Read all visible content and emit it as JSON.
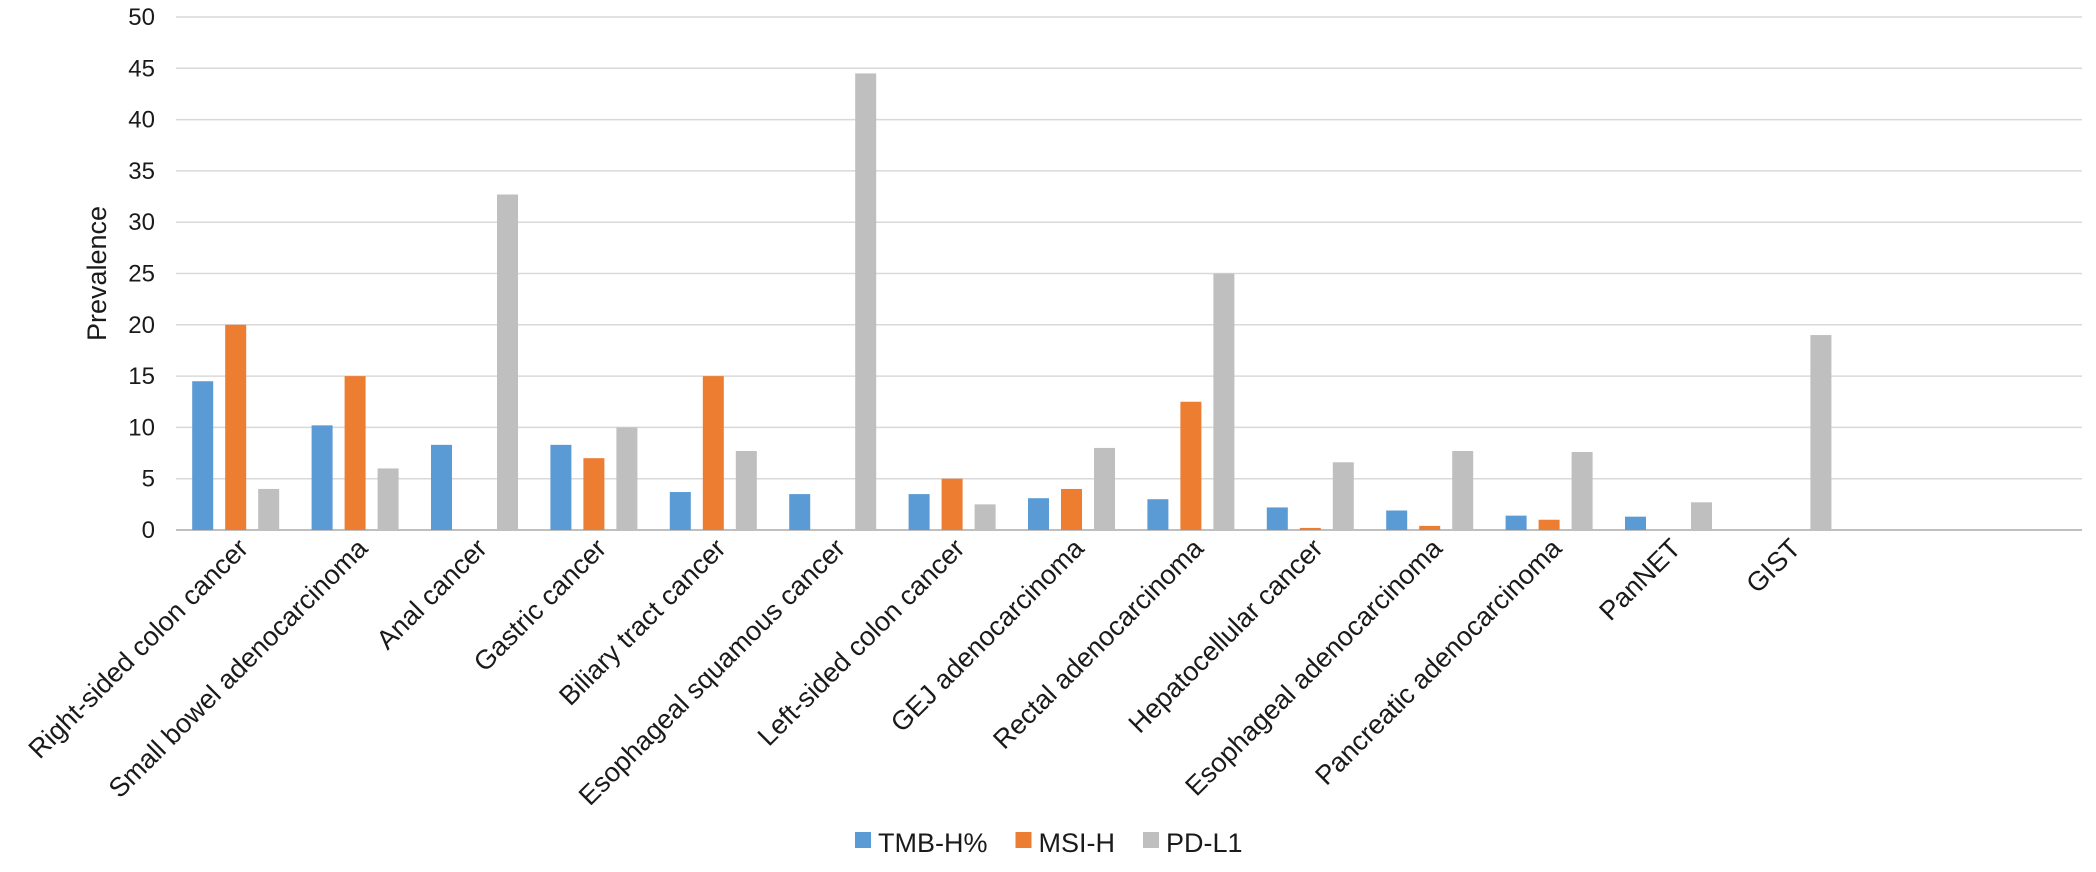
{
  "chart_data": {
    "type": "bar",
    "title": "",
    "xlabel": "",
    "ylabel": "Prevalence",
    "ylim": [
      0,
      50
    ],
    "yticks": [
      0,
      5,
      10,
      15,
      20,
      25,
      30,
      35,
      40,
      45,
      50
    ],
    "grid": true,
    "legend_position": "bottom",
    "categories": [
      "Right-sided colon cancer",
      "Small bowel adenocarcinoma",
      "Anal cancer",
      "Gastric cancer",
      "Biliary tract cancer",
      "Esophageal squamous cancer",
      "Left-sided colon cancer",
      "GEJ adenocarcinoma",
      "Rectal adenocarcinoma",
      "Hepatocellular cancer",
      "Esophageal adenocarcinoma",
      "Pancreatic adenocarcinoma",
      "PanNET",
      "GIST"
    ],
    "series": [
      {
        "name": "TMB-H%",
        "color": "#5b9bd5",
        "values": [
          14.5,
          10.2,
          8.3,
          8.3,
          3.7,
          3.5,
          3.5,
          3.1,
          3.0,
          2.2,
          1.9,
          1.4,
          1.3,
          null
        ]
      },
      {
        "name": "MSI-H",
        "color": "#ed7d31",
        "values": [
          20.0,
          15.0,
          null,
          7.0,
          15.0,
          null,
          5.0,
          4.0,
          12.5,
          0.2,
          0.4,
          1.0,
          null,
          null
        ]
      },
      {
        "name": "PD-L1",
        "color": "#bfbfbf",
        "values": [
          4.0,
          6.0,
          32.7,
          10.0,
          7.7,
          44.5,
          2.5,
          8.0,
          25.0,
          6.6,
          7.7,
          7.6,
          2.7,
          19.0
        ]
      }
    ]
  }
}
